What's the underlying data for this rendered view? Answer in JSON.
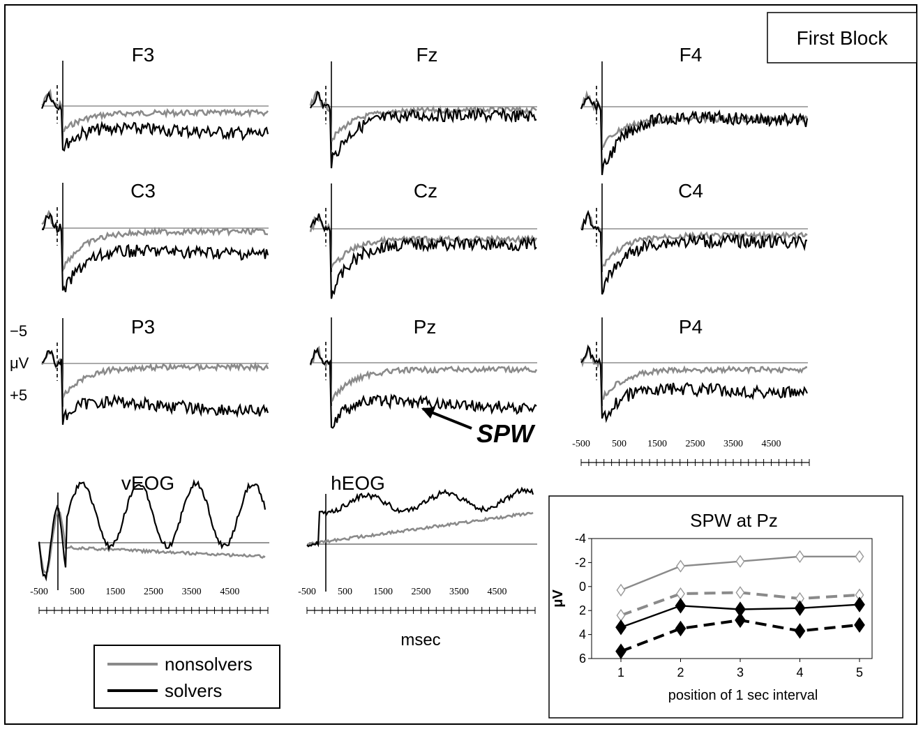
{
  "block_label": "First Block",
  "legend": [
    {
      "name": "nonsolvers",
      "color": "#8a8a8a"
    },
    {
      "name": "solvers",
      "color": "#000000"
    }
  ],
  "scale": {
    "neg": "−5",
    "unit": "μV",
    "pos": "+5"
  },
  "x_unit": "msec",
  "annotation": "SPW",
  "panels": [
    {
      "name": "F3"
    },
    {
      "name": "Fz"
    },
    {
      "name": "F4"
    },
    {
      "name": "C3"
    },
    {
      "name": "Cz"
    },
    {
      "name": "C4"
    },
    {
      "name": "P3"
    },
    {
      "name": "Pz"
    },
    {
      "name": "P4"
    },
    {
      "name": "vEOG"
    },
    {
      "name": "hEOG"
    }
  ],
  "chart_data": [
    {
      "type": "line",
      "title": "",
      "xlabel": "msec",
      "ylabel": "μV",
      "x_ticks": [
        "-500",
        "500",
        "1500",
        "2500",
        "3500",
        "4500"
      ],
      "xlim": [
        -500,
        5500
      ],
      "note": "ERP waveforms at electrodes F3, Fz, F4, C3, Cz, C4, P3, Pz, P4, vEOG, hEOG; negative plotted up; scale bar -5 to +5 μV",
      "series": [
        {
          "name": "nonsolvers"
        },
        {
          "name": "solvers"
        }
      ]
    },
    {
      "type": "line",
      "title": "SPW at Pz",
      "xlabel": "position of 1 sec interval",
      "ylabel": "μV",
      "categories": [
        "1",
        "2",
        "3",
        "4",
        "5"
      ],
      "y_ticks": [
        "-4",
        "-2",
        "0",
        "2",
        "4",
        "6"
      ],
      "ylim": [
        -4,
        6
      ],
      "y_inverted": true,
      "series": [
        {
          "style": "gray-solid-open-diamond",
          "values": [
            0.3,
            -1.7,
            -2.1,
            -2.5,
            -2.5
          ]
        },
        {
          "style": "gray-dashed-open-diamond",
          "values": [
            2.4,
            0.6,
            0.5,
            1.0,
            0.7
          ]
        },
        {
          "style": "black-solid-filled-diamond",
          "values": [
            3.4,
            1.6,
            1.9,
            1.8,
            1.5
          ]
        },
        {
          "style": "black-dashed-filled-diamond",
          "values": [
            5.4,
            3.5,
            2.8,
            3.7,
            3.2
          ]
        }
      ]
    }
  ]
}
